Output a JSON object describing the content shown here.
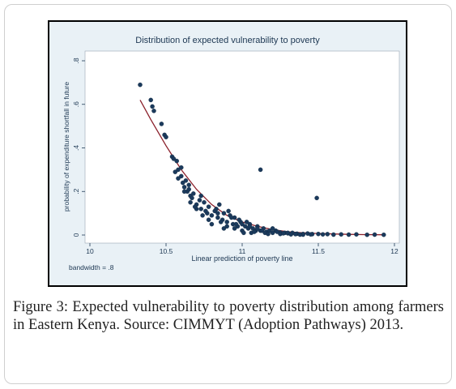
{
  "figure": {
    "caption_label": "Figure 3:",
    "caption_text": " Expected vulnerability to poverty distribution among farmers in Eastern Kenya. Source: CIMMYT (Adoption Pathways) 2013."
  },
  "colors": {
    "panel_bg": "#e9f1f6",
    "plot_bg": "#ffffff",
    "marker": "#1b3a5c",
    "fit_line": "#8a1f2a",
    "frame": "#000000"
  },
  "chart_data": {
    "type": "scatter",
    "title": "Distribution of expected vulnerability to poverty",
    "xlabel": "Linear prediction of poverty line",
    "ylabel": "probability of expenditure shortfall in future",
    "note": "bandwidth = .8",
    "xlim": [
      10,
      12
    ],
    "ylim": [
      0,
      0.8
    ],
    "xticks": [
      "10",
      "10.5",
      "11",
      "11.5",
      "12"
    ],
    "yticks": [
      "0",
      ".2",
      ".4",
      ".6",
      ".8"
    ],
    "grid": false,
    "series": [
      {
        "kind": "points",
        "x": [
          10.33,
          10.4,
          10.41,
          10.42,
          10.47,
          10.49,
          10.5,
          10.54,
          10.55,
          10.57,
          10.56,
          10.58,
          10.6,
          10.61,
          10.62,
          10.63,
          10.64,
          10.65,
          10.66,
          10.67,
          10.68,
          10.7,
          10.72,
          10.73,
          10.75,
          10.77,
          10.78,
          10.8,
          10.82,
          10.84,
          10.85,
          10.87,
          10.88,
          10.9,
          10.92,
          10.94,
          10.95,
          10.97,
          10.99,
          11.0,
          11.02,
          11.04,
          11.05,
          11.07,
          11.09,
          11.1,
          11.12,
          11.14,
          11.16,
          11.18,
          11.2,
          11.22,
          11.25,
          11.28,
          11.3,
          11.33,
          11.36,
          11.4,
          11.43,
          11.46,
          11.5,
          11.53,
          11.56,
          11.6,
          11.65,
          11.7,
          11.75,
          11.82,
          11.87,
          11.93,
          11.12,
          11.49,
          10.58,
          10.62,
          10.66,
          10.7,
          10.74,
          10.78,
          10.83,
          10.86,
          10.9,
          10.93,
          10.96,
          11.0,
          11.03,
          11.06,
          11.1,
          11.15,
          11.2,
          11.25,
          11.3,
          11.35,
          11.4,
          11.45,
          10.6,
          10.65,
          10.69,
          10.73,
          10.76,
          10.8,
          10.84,
          10.88,
          10.91,
          10.95,
          10.98,
          11.01,
          11.05,
          11.08,
          11.13,
          11.17,
          11.23,
          11.27,
          11.32,
          11.38
        ],
        "y": [
          0.69,
          0.62,
          0.59,
          0.57,
          0.51,
          0.46,
          0.45,
          0.36,
          0.35,
          0.34,
          0.29,
          0.3,
          0.27,
          0.24,
          0.22,
          0.25,
          0.2,
          0.21,
          0.18,
          0.17,
          0.19,
          0.14,
          0.16,
          0.12,
          0.15,
          0.1,
          0.13,
          0.09,
          0.11,
          0.08,
          0.14,
          0.07,
          0.1,
          0.06,
          0.09,
          0.05,
          0.08,
          0.04,
          0.06,
          0.05,
          0.04,
          0.03,
          0.05,
          0.03,
          0.02,
          0.04,
          0.02,
          0.03,
          0.015,
          0.02,
          0.01,
          0.02,
          0.012,
          0.01,
          0.008,
          0.01,
          0.006,
          0.005,
          0.007,
          0.004,
          0.005,
          0.003,
          0.004,
          0.002,
          0.003,
          0.002,
          0.003,
          0.001,
          0.002,
          0.001,
          0.3,
          0.17,
          0.26,
          0.2,
          0.15,
          0.12,
          0.09,
          0.07,
          0.12,
          0.06,
          0.04,
          0.08,
          0.05,
          0.02,
          0.06,
          0.01,
          0.03,
          0.01,
          0.03,
          0.005,
          0.01,
          0.004,
          0.002,
          0.003,
          0.31,
          0.23,
          0.13,
          0.18,
          0.11,
          0.05,
          0.1,
          0.03,
          0.11,
          0.03,
          0.07,
          0.01,
          0.04,
          0.015,
          0.02,
          0.005,
          0.015,
          0.008,
          0.003,
          0.002
        ]
      },
      {
        "kind": "fit",
        "x": [
          10.33,
          10.4,
          10.5,
          10.6,
          10.7,
          10.8,
          10.9,
          11.0,
          11.1,
          11.2,
          11.3,
          11.4,
          11.5,
          11.6,
          11.7,
          11.8,
          11.93
        ],
        "y": [
          0.62,
          0.53,
          0.41,
          0.3,
          0.21,
          0.14,
          0.09,
          0.06,
          0.04,
          0.025,
          0.015,
          0.01,
          0.007,
          0.005,
          0.003,
          0.002,
          0.001
        ]
      }
    ]
  }
}
